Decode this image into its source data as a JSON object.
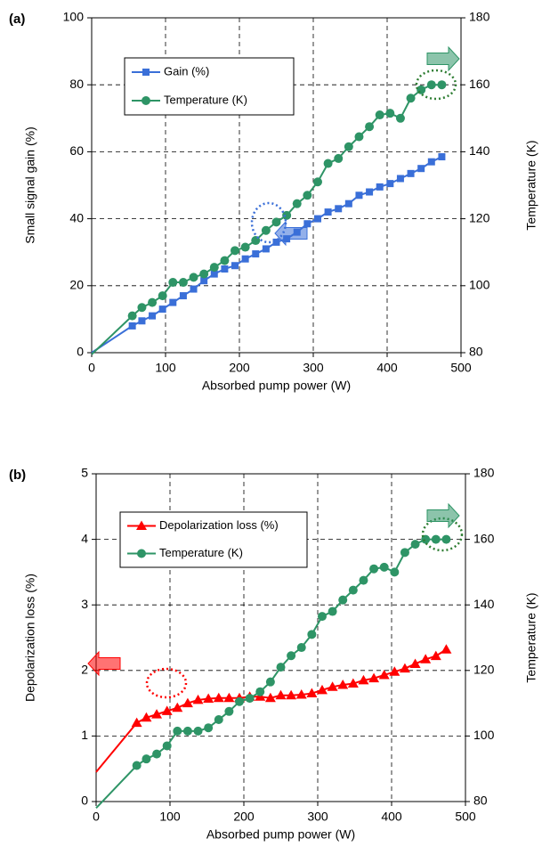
{
  "chart_data": [
    {
      "type": "line",
      "panel_label": "(a)",
      "xlabel": "Absorbed pump power (W)",
      "ylabel": "Small signal gain (%)",
      "y2label": "Temperature (K)",
      "x": [
        0,
        55,
        68,
        82,
        96,
        110,
        124,
        138,
        152,
        166,
        180,
        194,
        208,
        222,
        236,
        250,
        264,
        278,
        292,
        306,
        320,
        334,
        348,
        362,
        376,
        390,
        404,
        418,
        432,
        446,
        460,
        474
      ],
      "xlim": [
        0,
        500
      ],
      "xticks": [
        0,
        100,
        200,
        300,
        400,
        500
      ],
      "ylim": [
        0,
        100
      ],
      "yticks": [
        0,
        20,
        40,
        60,
        80,
        100
      ],
      "y2lim": [
        80,
        180
      ],
      "y2ticks": [
        80,
        100,
        120,
        140,
        160,
        180
      ],
      "grid": true,
      "series": [
        {
          "name": "Gain (%)",
          "color": "#3a6fd8",
          "marker": "square",
          "axis": "y",
          "values": [
            0,
            8,
            9.5,
            11,
            13,
            15,
            17,
            19,
            21.5,
            23.5,
            25,
            26,
            28,
            29.5,
            31,
            33,
            34,
            36,
            38.5,
            40,
            42,
            43,
            44.5,
            47,
            48,
            49.5,
            50.5,
            52,
            53.5,
            55,
            57,
            58.5
          ]
        },
        {
          "name": "Temperature (K)",
          "color": "#2e9466",
          "marker": "circle",
          "axis": "y2",
          "values": [
            79.5,
            91,
            93.5,
            95,
            97,
            101,
            101,
            102.5,
            103.5,
            105.5,
            107.5,
            110.5,
            111.5,
            113.5,
            116.5,
            119,
            121,
            124.5,
            127,
            131,
            136.5,
            138,
            141.5,
            144.5,
            147.5,
            151,
            151.5,
            150,
            156,
            158.5,
            160,
            160
          ]
        }
      ]
    },
    {
      "type": "line",
      "panel_label": "(b)",
      "xlabel": "Absorbed pump power (W)",
      "ylabel": "Depolarization loss (%)",
      "y2label": "Temperature (K)",
      "x": [
        0,
        55,
        68,
        82,
        96,
        110,
        124,
        138,
        152,
        166,
        180,
        194,
        208,
        222,
        236,
        250,
        264,
        278,
        292,
        306,
        320,
        334,
        348,
        362,
        376,
        390,
        404,
        418,
        432,
        446,
        460,
        474
      ],
      "xlim": [
        0,
        500
      ],
      "xticks": [
        0,
        100,
        200,
        300,
        400,
        500
      ],
      "ylim": [
        0,
        5
      ],
      "yticks": [
        0,
        1,
        2,
        3,
        4,
        5
      ],
      "y2lim": [
        80,
        180
      ],
      "y2ticks": [
        80,
        100,
        120,
        140,
        160,
        180
      ],
      "grid": true,
      "series": [
        {
          "name": "Depolarization loss (%)",
          "color": "#ff0000",
          "marker": "triangle",
          "axis": "y",
          "values": [
            0.45,
            1.2,
            1.28,
            1.33,
            1.38,
            1.43,
            1.5,
            1.55,
            1.57,
            1.58,
            1.58,
            1.58,
            1.6,
            1.6,
            1.58,
            1.62,
            1.62,
            1.63,
            1.65,
            1.7,
            1.75,
            1.78,
            1.8,
            1.85,
            1.88,
            1.93,
            1.98,
            2.03,
            2.1,
            2.17,
            2.22,
            2.32
          ]
        },
        {
          "name": "Temperature (K)",
          "color": "#2e9466",
          "marker": "circle",
          "axis": "y2",
          "values": [
            78,
            91,
            93,
            94.5,
            97,
            101.5,
            101.5,
            101.5,
            102.5,
            105,
            107.5,
            110.5,
            111.5,
            113.5,
            116.5,
            121,
            124.5,
            127,
            131,
            136.5,
            138,
            141.5,
            144.5,
            147.5,
            151,
            151.5,
            150,
            156,
            158.5,
            160,
            160,
            160
          ]
        }
      ]
    }
  ]
}
